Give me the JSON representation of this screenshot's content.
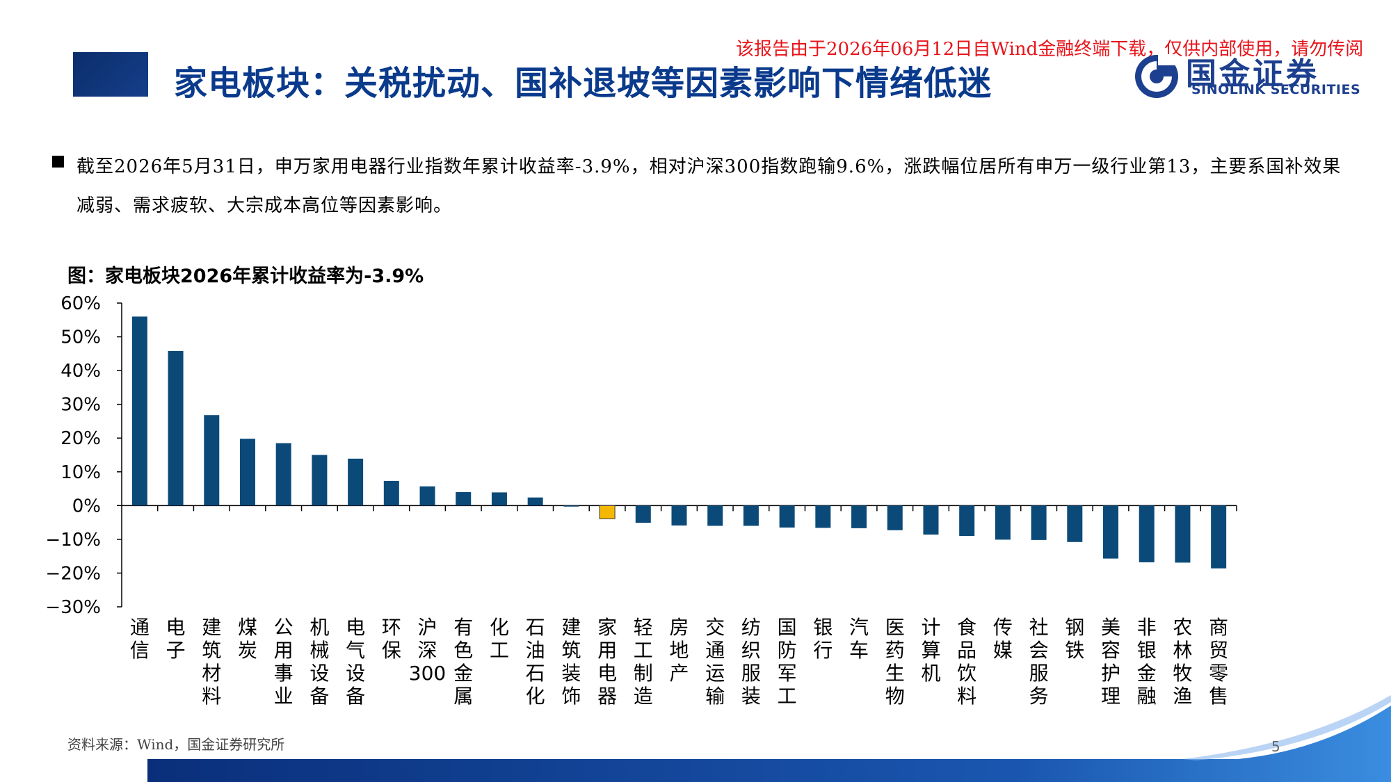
{
  "header": {
    "title": "家电板块：关税扰动、国补退坡等因素影响下情绪低迷",
    "watermark": "该报告由于2026年06月12日自Wind金融终端下载，仅供内部使用，请勿传阅",
    "logo_cn": "国金证券",
    "logo_en": "SINOLINK SECURITIES"
  },
  "bullet": {
    "text": "截至2026年5月31日，申万家用电器行业指数年累计收益率-3.9%，相对沪深300指数跑输9.6%，涨跌幅位居所有申万一级行业第13，主要系国补效果减弱、需求疲软、大宗成本高位等因素影响。"
  },
  "footer": {
    "source": "资料来源：Wind，国金证券研究所",
    "page_number": "5"
  },
  "colors": {
    "bar": "#0b4a78",
    "highlight": "#f5b800",
    "title": "#0a3a8c"
  },
  "chart_data": {
    "type": "bar",
    "title": "图：家电板块2026年累计收益率为-3.9%",
    "xlabel": "",
    "ylabel": "",
    "ylim": [
      -30,
      60
    ],
    "yticks": [
      "60%",
      "50%",
      "40%",
      "30%",
      "20%",
      "10%",
      "0%",
      "−10%",
      "−20%",
      "−30%"
    ],
    "ytick_values": [
      60,
      50,
      40,
      30,
      20,
      10,
      0,
      -10,
      -20,
      -30
    ],
    "grid": false,
    "legend": "none",
    "highlight_category": "家用电器",
    "categories": [
      "通信",
      "电子",
      "建筑材料",
      "煤炭",
      "公用事业",
      "机械设备",
      "电气设备",
      "环保",
      "沪深300",
      "有色金属",
      "化工",
      "石油石化",
      "建筑装饰",
      "家用电器",
      "轻工制造",
      "房地产",
      "交通运输",
      "纺织服装",
      "国防军工",
      "银行",
      "汽车",
      "医药生物",
      "计算机",
      "食品饮料",
      "传媒",
      "社会服务",
      "钢铁",
      "美容护理",
      "非银金融",
      "农林牧渔",
      "商贸零售"
    ],
    "values": [
      56.0,
      45.8,
      26.8,
      19.8,
      18.5,
      15.0,
      13.9,
      7.3,
      5.7,
      4.0,
      3.9,
      2.4,
      -0.3,
      -3.9,
      -5.1,
      -5.9,
      -6.0,
      -6.0,
      -6.5,
      -6.6,
      -6.7,
      -7.3,
      -8.6,
      -9.0,
      -10.1,
      -10.2,
      -10.8,
      -15.7,
      -16.8,
      -16.9,
      -18.6
    ]
  }
}
